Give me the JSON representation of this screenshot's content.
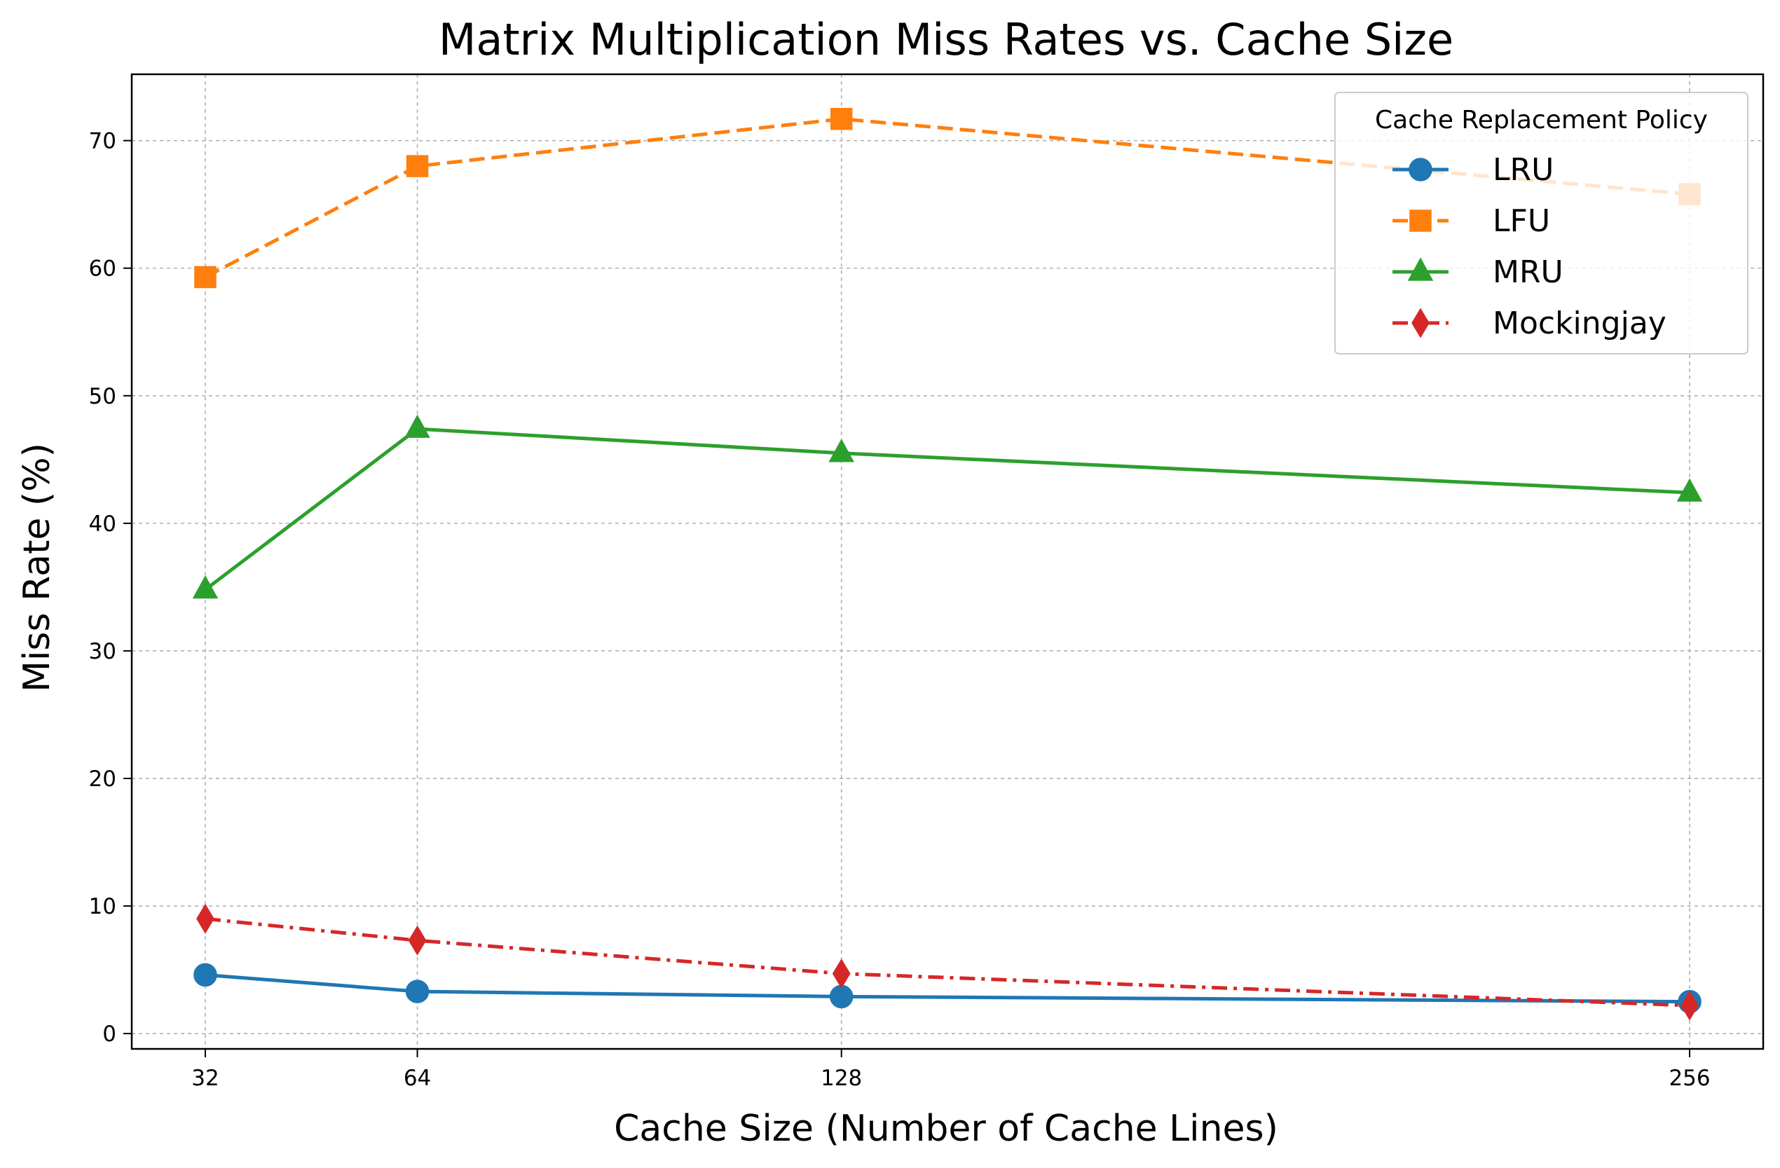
{
  "chart_data": {
    "type": "line",
    "title": "Matrix Multiplication Miss Rates vs. Cache Size",
    "xlabel": "Cache Size (Number of Cache Lines)",
    "ylabel": "Miss Rate (%)",
    "x": [
      32,
      64,
      128,
      256
    ],
    "x_tick_labels": [
      "32",
      "64",
      "128",
      "256"
    ],
    "y_ticks": [
      0,
      10,
      20,
      30,
      40,
      50,
      60,
      70
    ],
    "y_tick_labels": [
      "0",
      "10",
      "20",
      "30",
      "40",
      "50",
      "60",
      "70"
    ],
    "xlim": [
      20.9,
      267.1
    ],
    "ylim": [
      -1.2,
      75.2
    ],
    "grid": true,
    "legend": {
      "title": "Cache Replacement Policy",
      "placement": "top-right"
    },
    "series": [
      {
        "name": "LRU",
        "values": [
          4.6,
          3.3,
          2.9,
          2.5
        ],
        "color": "#1f77b4",
        "marker": "circle",
        "line_style": "solid"
      },
      {
        "name": "LFU",
        "values": [
          59.3,
          68.0,
          71.7,
          65.8
        ],
        "color": "#ff7f0e",
        "marker": "square",
        "line_style": "dashed"
      },
      {
        "name": "MRU",
        "values": [
          34.8,
          47.4,
          45.5,
          42.4
        ],
        "color": "#2ca02c",
        "marker": "triangle",
        "line_style": "solid"
      },
      {
        "name": "Mockingjay",
        "values": [
          9.0,
          7.3,
          4.7,
          2.2
        ],
        "color": "#d62728",
        "marker": "diamond",
        "line_style": "dashdot"
      }
    ]
  }
}
